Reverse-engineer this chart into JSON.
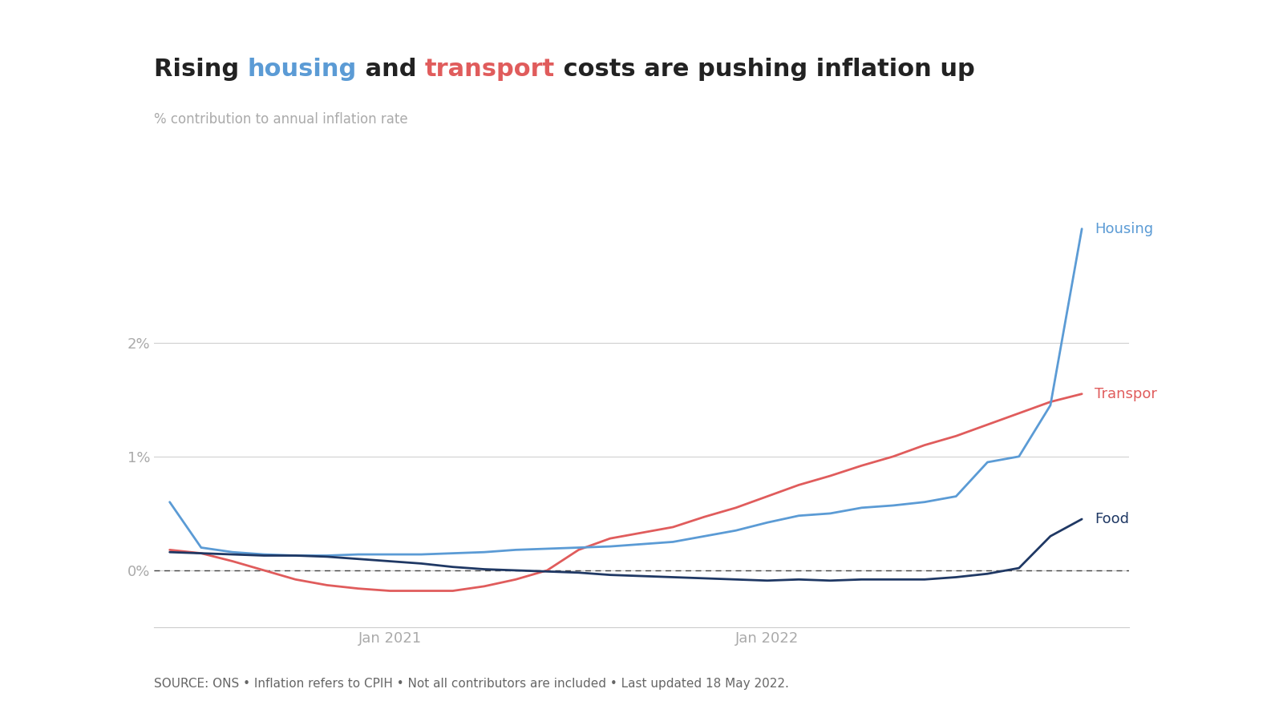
{
  "title_parts": [
    {
      "text": "Rising ",
      "color": "#222222"
    },
    {
      "text": "housing",
      "color": "#5b9bd5"
    },
    {
      "text": " and ",
      "color": "#222222"
    },
    {
      "text": "transport",
      "color": "#e05c5c"
    },
    {
      "text": " costs are pushing inflation up",
      "color": "#222222"
    }
  ],
  "subtitle": "% contribution to annual inflation rate",
  "source": "SOURCE: ONS • Inflation refers to CPIH • Not all contributors are included • Last updated 18 May 2022.",
  "housing_color": "#5b9bd5",
  "transport_color": "#e05c5c",
  "food_color": "#1f3864",
  "background_color": "#ffffff",
  "grid_color": "#d0d0d0",
  "yticks": [
    0,
    0.01,
    0.02
  ],
  "ytick_labels": [
    "0%",
    "1%",
    "2%"
  ],
  "ylim": [
    -0.005,
    0.033
  ],
  "xlabel_ticks_pos": [
    7,
    19
  ],
  "xlabel_ticks_labels": [
    "Jan 2021",
    "Jan 2022"
  ],
  "xlim": [
    -0.5,
    30.5
  ],
  "housing_data_y": [
    0.006,
    0.002,
    0.0016,
    0.0014,
    0.0013,
    0.0013,
    0.0014,
    0.0014,
    0.0014,
    0.0015,
    0.0016,
    0.0018,
    0.0019,
    0.002,
    0.0021,
    0.0023,
    0.0025,
    0.003,
    0.0035,
    0.0042,
    0.0048,
    0.005,
    0.0055,
    0.0057,
    0.006,
    0.0065,
    0.0095,
    0.01,
    0.0145,
    0.03
  ],
  "transport_data_y": [
    0.0018,
    0.0015,
    0.0008,
    0.0,
    -0.0008,
    -0.0013,
    -0.0016,
    -0.0018,
    -0.0018,
    -0.0018,
    -0.0014,
    -0.0008,
    0.0,
    0.0018,
    0.0028,
    0.0033,
    0.0038,
    0.0047,
    0.0055,
    0.0065,
    0.0075,
    0.0083,
    0.0092,
    0.01,
    0.011,
    0.0118,
    0.0128,
    0.0138,
    0.0148,
    0.0155
  ],
  "food_data_y": [
    0.0016,
    0.0015,
    0.0014,
    0.0013,
    0.0013,
    0.0012,
    0.001,
    0.0008,
    0.0006,
    0.0003,
    0.0001,
    0.0,
    -0.0001,
    -0.0002,
    -0.0004,
    -0.0005,
    -0.0006,
    -0.0007,
    -0.0008,
    -0.0009,
    -0.0008,
    -0.0009,
    -0.0008,
    -0.0008,
    -0.0008,
    -0.0006,
    -0.0003,
    0.0002,
    0.003,
    0.0045
  ],
  "label_housing": "Housing",
  "label_transport": "Transpor",
  "label_food": "Food",
  "title_fontsize": 22,
  "subtitle_fontsize": 12,
  "tick_fontsize": 13,
  "label_fontsize": 13,
  "source_fontsize": 11
}
